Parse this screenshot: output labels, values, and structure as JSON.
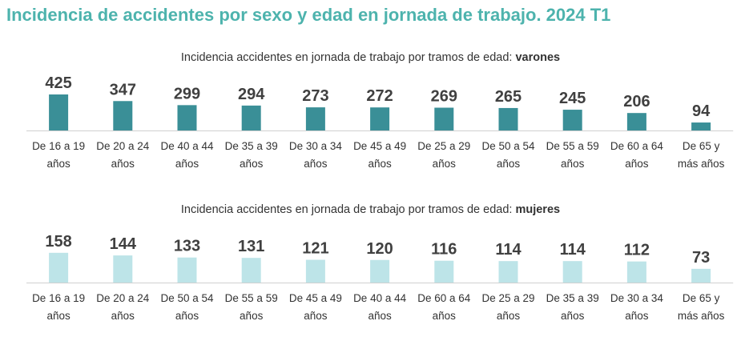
{
  "title": "Incidencia de accidentes por sexo y edad en jornada de trabajo. 2024 T1",
  "colors": {
    "title": "#4db3ad",
    "men": "#3a8f97",
    "women": "#bde4e8",
    "text": "#404040",
    "axis": "#d0d0d0"
  },
  "chart_data": [
    {
      "type": "bar",
      "title_prefix": "Incidencia accidentes en jornada de trabajo por tramos de edad: ",
      "title_bold": "varones",
      "categories": [
        [
          "De 16 a 19",
          "años"
        ],
        [
          "De 20 a 24",
          "años"
        ],
        [
          "De 40 a 44",
          "años"
        ],
        [
          "De 35 a 39",
          "años"
        ],
        [
          "De 30 a 34",
          "años"
        ],
        [
          "De 45 a 49",
          "años"
        ],
        [
          "De 25 a 29",
          "años"
        ],
        [
          "De 50 a 54",
          "años"
        ],
        [
          "De 55 a 59",
          "años"
        ],
        [
          "De 60 a 64",
          "años"
        ],
        [
          "De 65 y",
          "más años"
        ]
      ],
      "values": [
        425,
        347,
        299,
        294,
        273,
        272,
        269,
        265,
        245,
        206,
        94
      ],
      "color": "#3a8f97",
      "ylim": [
        0,
        500
      ],
      "grid": false
    },
    {
      "type": "bar",
      "title_prefix": "Incidencia accidentes en jornada de trabajo por tramos de edad: ",
      "title_bold": "mujeres",
      "categories": [
        [
          "De 16 a 19",
          "años"
        ],
        [
          "De 20 a 24",
          "años"
        ],
        [
          "De 50 a 54",
          "años"
        ],
        [
          "De 55 a 59",
          "años"
        ],
        [
          "De 45 a 49",
          "años"
        ],
        [
          "De 40 a 44",
          "años"
        ],
        [
          "De 60 a 64",
          "años"
        ],
        [
          "De 25 a 29",
          "años"
        ],
        [
          "De 35 a 39",
          "años"
        ],
        [
          "De 30 a 34",
          "años"
        ],
        [
          "De 65 y",
          "más años"
        ]
      ],
      "values": [
        158,
        144,
        133,
        131,
        121,
        120,
        116,
        114,
        114,
        112,
        73
      ],
      "color": "#bde4e8",
      "ylim": [
        0,
        200
      ],
      "grid": false
    }
  ]
}
